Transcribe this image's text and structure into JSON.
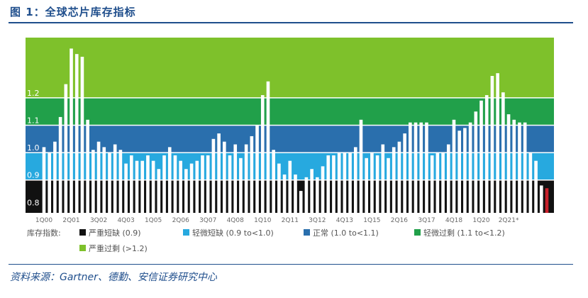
{
  "figure": {
    "title": "图 1：全球芯片库存指标",
    "source": "资料来源：Gartner、德勤、安信证券研究中心"
  },
  "chart_data": {
    "type": "bar",
    "ylim": [
      0.78,
      1.42
    ],
    "bands": [
      {
        "from": 0.78,
        "to": 0.9,
        "color": "#111111",
        "label": "0.8",
        "label_value": 0.8
      },
      {
        "from": 0.9,
        "to": 1.0,
        "color": "#27a9df",
        "label": "0.9",
        "label_value": 0.9
      },
      {
        "from": 1.0,
        "to": 1.1,
        "color": "#2a6fad",
        "label": "1.0",
        "label_value": 1.0
      },
      {
        "from": 1.1,
        "to": 1.2,
        "color": "#21a04a",
        "label": "1.1",
        "label_value": 1.1
      },
      {
        "from": 1.2,
        "to": 1.42,
        "color": "#7ec12b",
        "label": "1.2",
        "label_value": 1.2
      }
    ],
    "x_tick_labels": [
      "1Q00",
      "2Q01",
      "3Q02",
      "4Q03",
      "1Q05",
      "2Q06",
      "3Q07",
      "4Q08",
      "1Q10",
      "2Q11",
      "3Q12",
      "4Q13",
      "1Q15",
      "2Q16",
      "3Q17",
      "4Q18",
      "1Q20",
      "2Q21*"
    ],
    "x_tick_every": 5,
    "values": [
      1.02,
      1.0,
      1.04,
      1.13,
      1.25,
      1.38,
      1.36,
      1.35,
      1.12,
      1.01,
      1.04,
      1.02,
      1.0,
      1.03,
      1.01,
      0.96,
      0.99,
      0.97,
      0.97,
      0.99,
      0.97,
      0.94,
      0.99,
      1.02,
      0.99,
      0.97,
      0.94,
      0.96,
      0.97,
      0.99,
      0.99,
      1.05,
      1.07,
      1.04,
      0.99,
      1.03,
      0.98,
      1.03,
      1.06,
      1.1,
      1.21,
      1.26,
      1.01,
      0.96,
      0.92,
      0.97,
      0.92,
      0.86,
      0.91,
      0.94,
      0.91,
      0.95,
      0.99,
      0.99,
      1.0,
      1.0,
      1.0,
      1.02,
      1.12,
      0.98,
      1.0,
      0.99,
      1.03,
      0.98,
      1.02,
      1.04,
      1.07,
      1.11,
      1.11,
      1.11,
      1.11,
      0.99,
      1.0,
      1.0,
      1.03,
      1.12,
      1.08,
      1.09,
      1.11,
      1.15,
      1.19,
      1.21,
      1.28,
      1.29,
      1.22,
      1.14,
      1.12,
      1.11,
      1.11,
      1.0,
      0.97,
      0.88,
      0.87
    ],
    "highlight_last_color": "#c8202a",
    "legend": {
      "title": "库存指数:",
      "items": [
        {
          "label": "严重短缺",
          "range": "(0.9)",
          "color": "#111111"
        },
        {
          "label": "轻微短缺",
          "range": "(0.9 to<1.0)",
          "color": "#27a9df"
        },
        {
          "label": "正常",
          "range": "(1.0 to<1.1)",
          "color": "#2a6fad"
        },
        {
          "label": "轻微过剩",
          "range": "(1.1 to<1.2)",
          "color": "#21a04a"
        },
        {
          "label": "严重过剩",
          "range": "(>1.2)",
          "color": "#7ec12b"
        }
      ]
    }
  }
}
